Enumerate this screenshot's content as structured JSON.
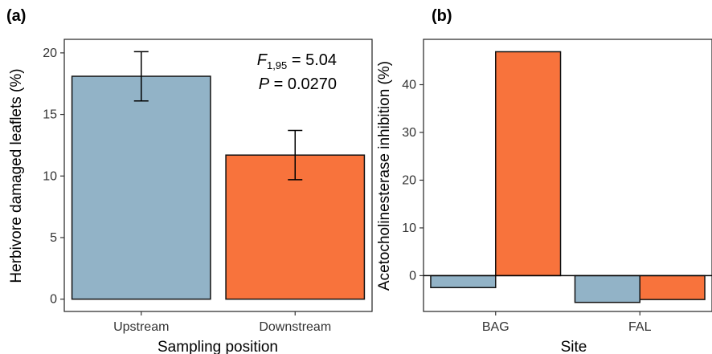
{
  "chart_data": [
    {
      "panel": "(a)",
      "type": "bar",
      "categories": [
        "Upstream",
        "Downstream"
      ],
      "values": [
        18.1,
        11.7
      ],
      "errors": [
        2.0,
        2.0
      ],
      "colors": [
        "#92b3c7",
        "#f8733c"
      ],
      "xlabel": "Sampling position",
      "ylabel": "Herbivore damaged leaflets (%)",
      "ylim": [
        -1.0,
        21.1
      ],
      "yticks": [
        0,
        5,
        10,
        15,
        20
      ],
      "annotation": {
        "stat_symbol": "F",
        "stat_subscript": "1,95",
        "stat_value": " = 5.04",
        "p_symbol": "P",
        "p_value": " = 0.0270"
      },
      "grid": false
    },
    {
      "panel": "(b)",
      "type": "bar",
      "categories": [
        "BAG",
        "FAL"
      ],
      "series": [
        {
          "values": [
            -2.5,
            -5.6
          ],
          "color": "#92b3c7"
        },
        {
          "values": [
            46.9,
            -5.0
          ],
          "color": "#f8733c"
        }
      ],
      "xlabel": "Site",
      "ylabel": "Acetocholinesterase inhibition (%)",
      "ylim": [
        -7.5,
        49.5
      ],
      "yticks": [
        0,
        10,
        20,
        30,
        40
      ],
      "zero_line": true,
      "grid": false
    }
  ]
}
